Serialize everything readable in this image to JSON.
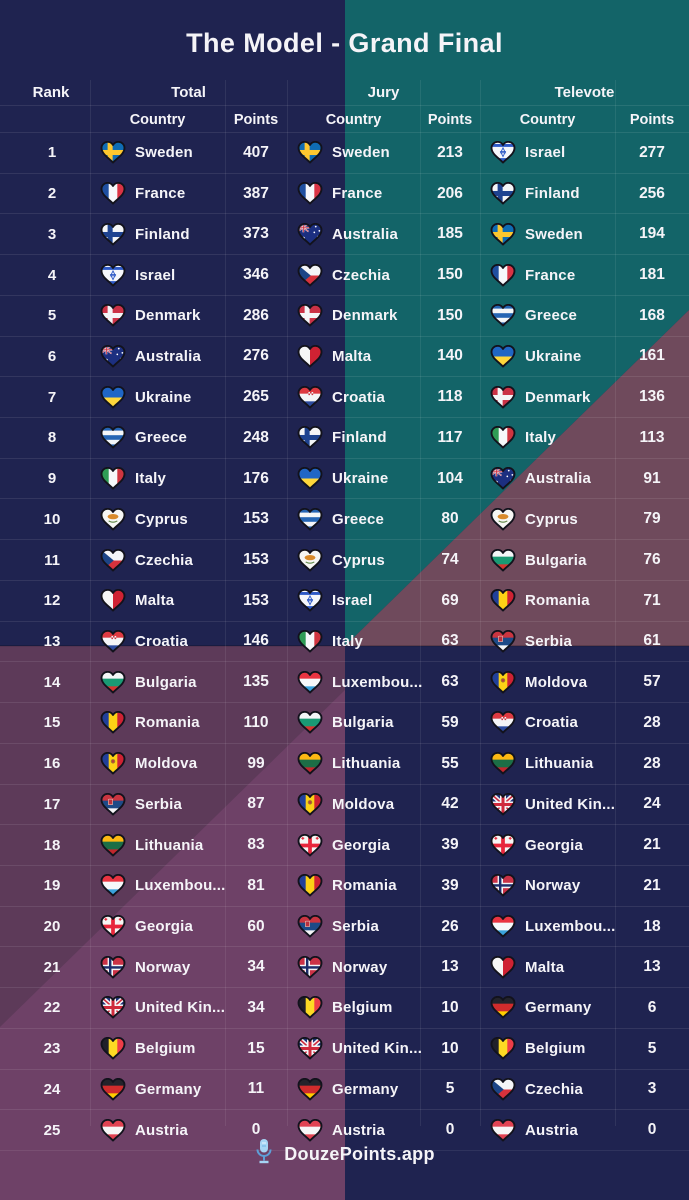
{
  "title": "The Model - Grand Final",
  "headers": {
    "rank": "Rank",
    "total": "Total",
    "jury": "Jury",
    "televote": "Televote",
    "country": "Country",
    "points": "Points"
  },
  "footer": {
    "brand": "DouzePoints.app",
    "icon": "microphone-icon"
  },
  "colors": {
    "navy": "#1f2350",
    "teal": "#136468",
    "maroon": "#6f4a5c",
    "purple_dark": "#5d3a59",
    "purple_light": "#6e4167",
    "text": "#f5f4f8",
    "grid_line": "rgba(255,255,255,0.09)",
    "accent_blue": "#9fd0f2",
    "heart_outline": "#12121c"
  },
  "flags": {
    "Sweden": {
      "t": "cross",
      "c": [
        "#0f6cb4",
        "#fdc72f"
      ]
    },
    "France": {
      "t": "v",
      "c": [
        "#1f4fa0",
        "#f6f8fb",
        "#da3445"
      ]
    },
    "Finland": {
      "t": "cross",
      "c": [
        "#f4f5f7",
        "#1e4390"
      ]
    },
    "Israel": {
      "t": "il",
      "c": [
        "#f6f7fb",
        "#2e59c6"
      ]
    },
    "Denmark": {
      "t": "cross",
      "c": [
        "#cb3246",
        "#f4f5f7"
      ]
    },
    "Australia": {
      "t": "au",
      "c": [
        "#1c2f80",
        "#f4f5f7",
        "#cf2b3d"
      ]
    },
    "Ukraine": {
      "t": "h",
      "c": [
        "#2066c5",
        "#ffd73b"
      ]
    },
    "Greece": {
      "t": "h",
      "c": [
        "#2565b4",
        "#f4f6f8",
        "#2565b4",
        "#f4f6f8",
        "#2565b4"
      ]
    },
    "Italy": {
      "t": "v",
      "c": [
        "#2f9c55",
        "#f6f8fa",
        "#cf3540"
      ]
    },
    "Cyprus": {
      "t": "cy",
      "c": [
        "#f6f6f4",
        "#d98a2b",
        "#5a8442"
      ]
    },
    "Czechia": {
      "t": "cz",
      "c": [
        "#f4f5f7",
        "#d7323c",
        "#1c4486"
      ]
    },
    "Malta": {
      "t": "v",
      "c": [
        "#f6f6f6",
        "#cf2233"
      ]
    },
    "Croatia": {
      "t": "hr",
      "c": [
        "#de3a41",
        "#f4f5f7",
        "#2c4b9e"
      ]
    },
    "Bulgaria": {
      "t": "h",
      "c": [
        "#f4f6f8",
        "#1a9a74",
        "#d53530"
      ]
    },
    "Romania": {
      "t": "v",
      "c": [
        "#21409a",
        "#fcd116",
        "#cf2233"
      ]
    },
    "Moldova": {
      "t": "md",
      "c": [
        "#21409a",
        "#fcd116",
        "#cf2233"
      ]
    },
    "Serbia": {
      "t": "rs",
      "c": [
        "#ca3540",
        "#1d4a87",
        "#f4f5f7"
      ]
    },
    "Lithuania": {
      "t": "h",
      "c": [
        "#fdb913",
        "#1c6e46",
        "#c1272d"
      ]
    },
    "Luxembourg": {
      "t": "h",
      "c": [
        "#ea3441",
        "#f6f8fa",
        "#3aa3dc"
      ]
    },
    "Georgia": {
      "t": "ge",
      "c": [
        "#f6f6f4",
        "#e8273c"
      ]
    },
    "Norway": {
      "t": "cross2",
      "c": [
        "#cb3246",
        "#f4f5f7",
        "#1d2d6b"
      ]
    },
    "United Kingdom": {
      "t": "uk",
      "c": [
        "#1d3176",
        "#f4f5f7",
        "#cf2b3d"
      ]
    },
    "Belgium": {
      "t": "v",
      "c": [
        "#20202a",
        "#fdda24",
        "#ee3d48"
      ]
    },
    "Germany": {
      "t": "h",
      "c": [
        "#23232b",
        "#d02c2c",
        "#ffce00"
      ]
    },
    "Austria": {
      "t": "h",
      "c": [
        "#e04352",
        "#f6f6f6",
        "#e04352"
      ]
    }
  },
  "rows": [
    {
      "rank": 1,
      "total": {
        "country": "Sweden",
        "flag": "Sweden",
        "points": 407
      },
      "jury": {
        "country": "Sweden",
        "flag": "Sweden",
        "points": 213
      },
      "televote": {
        "country": "Israel",
        "flag": "Israel",
        "points": 277
      }
    },
    {
      "rank": 2,
      "total": {
        "country": "France",
        "flag": "France",
        "points": 387
      },
      "jury": {
        "country": "France",
        "flag": "France",
        "points": 206
      },
      "televote": {
        "country": "Finland",
        "flag": "Finland",
        "points": 256
      }
    },
    {
      "rank": 3,
      "total": {
        "country": "Finland",
        "flag": "Finland",
        "points": 373
      },
      "jury": {
        "country": "Australia",
        "flag": "Australia",
        "points": 185
      },
      "televote": {
        "country": "Sweden",
        "flag": "Sweden",
        "points": 194
      }
    },
    {
      "rank": 4,
      "total": {
        "country": "Israel",
        "flag": "Israel",
        "points": 346
      },
      "jury": {
        "country": "Czechia",
        "flag": "Czechia",
        "points": 150
      },
      "televote": {
        "country": "France",
        "flag": "France",
        "points": 181
      }
    },
    {
      "rank": 5,
      "total": {
        "country": "Denmark",
        "flag": "Denmark",
        "points": 286
      },
      "jury": {
        "country": "Denmark",
        "flag": "Denmark",
        "points": 150
      },
      "televote": {
        "country": "Greece",
        "flag": "Greece",
        "points": 168
      }
    },
    {
      "rank": 6,
      "total": {
        "country": "Australia",
        "flag": "Australia",
        "points": 276
      },
      "jury": {
        "country": "Malta",
        "flag": "Malta",
        "points": 140
      },
      "televote": {
        "country": "Ukraine",
        "flag": "Ukraine",
        "points": 161
      }
    },
    {
      "rank": 7,
      "total": {
        "country": "Ukraine",
        "flag": "Ukraine",
        "points": 265
      },
      "jury": {
        "country": "Croatia",
        "flag": "Croatia",
        "points": 118
      },
      "televote": {
        "country": "Denmark",
        "flag": "Denmark",
        "points": 136
      }
    },
    {
      "rank": 8,
      "total": {
        "country": "Greece",
        "flag": "Greece",
        "points": 248
      },
      "jury": {
        "country": "Finland",
        "flag": "Finland",
        "points": 117
      },
      "televote": {
        "country": "Italy",
        "flag": "Italy",
        "points": 113
      }
    },
    {
      "rank": 9,
      "total": {
        "country": "Italy",
        "flag": "Italy",
        "points": 176
      },
      "jury": {
        "country": "Ukraine",
        "flag": "Ukraine",
        "points": 104
      },
      "televote": {
        "country": "Australia",
        "flag": "Australia",
        "points": 91
      }
    },
    {
      "rank": 10,
      "total": {
        "country": "Cyprus",
        "flag": "Cyprus",
        "points": 153
      },
      "jury": {
        "country": "Greece",
        "flag": "Greece",
        "points": 80
      },
      "televote": {
        "country": "Cyprus",
        "flag": "Cyprus",
        "points": 79
      }
    },
    {
      "rank": 11,
      "total": {
        "country": "Czechia",
        "flag": "Czechia",
        "points": 153
      },
      "jury": {
        "country": "Cyprus",
        "flag": "Cyprus",
        "points": 74
      },
      "televote": {
        "country": "Bulgaria",
        "flag": "Bulgaria",
        "points": 76
      }
    },
    {
      "rank": 12,
      "total": {
        "country": "Malta",
        "flag": "Malta",
        "points": 153
      },
      "jury": {
        "country": "Israel",
        "flag": "Israel",
        "points": 69
      },
      "televote": {
        "country": "Romania",
        "flag": "Romania",
        "points": 71
      }
    },
    {
      "rank": 13,
      "total": {
        "country": "Croatia",
        "flag": "Croatia",
        "points": 146
      },
      "jury": {
        "country": "Italy",
        "flag": "Italy",
        "points": 63
      },
      "televote": {
        "country": "Serbia",
        "flag": "Serbia",
        "points": 61
      }
    },
    {
      "rank": 14,
      "total": {
        "country": "Bulgaria",
        "flag": "Bulgaria",
        "points": 135
      },
      "jury": {
        "country": "Luxembou...",
        "flag": "Luxembourg",
        "points": 63
      },
      "televote": {
        "country": "Moldova",
        "flag": "Moldova",
        "points": 57
      }
    },
    {
      "rank": 15,
      "total": {
        "country": "Romania",
        "flag": "Romania",
        "points": 110
      },
      "jury": {
        "country": "Bulgaria",
        "flag": "Bulgaria",
        "points": 59
      },
      "televote": {
        "country": "Croatia",
        "flag": "Croatia",
        "points": 28
      }
    },
    {
      "rank": 16,
      "total": {
        "country": "Moldova",
        "flag": "Moldova",
        "points": 99
      },
      "jury": {
        "country": "Lithuania",
        "flag": "Lithuania",
        "points": 55
      },
      "televote": {
        "country": "Lithuania",
        "flag": "Lithuania",
        "points": 28
      }
    },
    {
      "rank": 17,
      "total": {
        "country": "Serbia",
        "flag": "Serbia",
        "points": 87
      },
      "jury": {
        "country": "Moldova",
        "flag": "Moldova",
        "points": 42
      },
      "televote": {
        "country": "United Kin...",
        "flag": "United Kingdom",
        "points": 24
      }
    },
    {
      "rank": 18,
      "total": {
        "country": "Lithuania",
        "flag": "Lithuania",
        "points": 83
      },
      "jury": {
        "country": "Georgia",
        "flag": "Georgia",
        "points": 39
      },
      "televote": {
        "country": "Georgia",
        "flag": "Georgia",
        "points": 21
      }
    },
    {
      "rank": 19,
      "total": {
        "country": "Luxembou...",
        "flag": "Luxembourg",
        "points": 81
      },
      "jury": {
        "country": "Romania",
        "flag": "Romania",
        "points": 39
      },
      "televote": {
        "country": "Norway",
        "flag": "Norway",
        "points": 21
      }
    },
    {
      "rank": 20,
      "total": {
        "country": "Georgia",
        "flag": "Georgia",
        "points": 60
      },
      "jury": {
        "country": "Serbia",
        "flag": "Serbia",
        "points": 26
      },
      "televote": {
        "country": "Luxembou...",
        "flag": "Luxembourg",
        "points": 18
      }
    },
    {
      "rank": 21,
      "total": {
        "country": "Norway",
        "flag": "Norway",
        "points": 34
      },
      "jury": {
        "country": "Norway",
        "flag": "Norway",
        "points": 13
      },
      "televote": {
        "country": "Malta",
        "flag": "Malta",
        "points": 13
      }
    },
    {
      "rank": 22,
      "total": {
        "country": "United Kin...",
        "flag": "United Kingdom",
        "points": 34
      },
      "jury": {
        "country": "Belgium",
        "flag": "Belgium",
        "points": 10
      },
      "televote": {
        "country": "Germany",
        "flag": "Germany",
        "points": 6
      }
    },
    {
      "rank": 23,
      "total": {
        "country": "Belgium",
        "flag": "Belgium",
        "points": 15
      },
      "jury": {
        "country": "United Kin...",
        "flag": "United Kingdom",
        "points": 10
      },
      "televote": {
        "country": "Belgium",
        "flag": "Belgium",
        "points": 5
      }
    },
    {
      "rank": 24,
      "total": {
        "country": "Germany",
        "flag": "Germany",
        "points": 11
      },
      "jury": {
        "country": "Germany",
        "flag": "Germany",
        "points": 5
      },
      "televote": {
        "country": "Czechia",
        "flag": "Czechia",
        "points": 3
      }
    },
    {
      "rank": 25,
      "total": {
        "country": "Austria",
        "flag": "Austria",
        "points": 0
      },
      "jury": {
        "country": "Austria",
        "flag": "Austria",
        "points": 0
      },
      "televote": {
        "country": "Austria",
        "flag": "Austria",
        "points": 0
      }
    }
  ]
}
